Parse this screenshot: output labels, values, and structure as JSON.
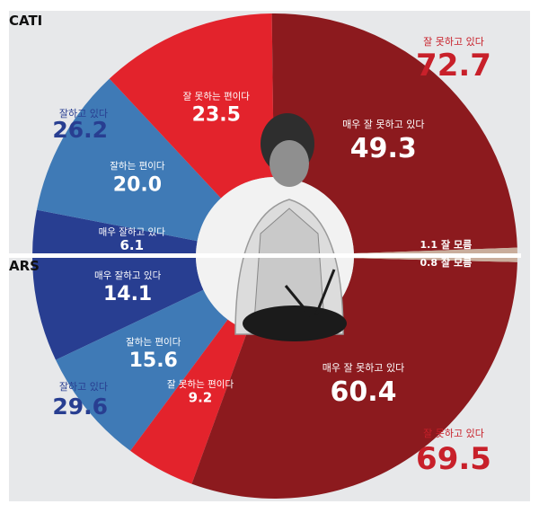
{
  "labels": {
    "top_group": "CATI",
    "bottom_group": "ARS"
  },
  "colors": {
    "very_bad": "#8c1a1e",
    "bad": "#e3232c",
    "good": "#3f7ab6",
    "very_good": "#283e91",
    "unknown": "#c9ad9c",
    "positive_text": "#283e91",
    "negative_text": "#c8202a",
    "background": "#e7e8ea"
  },
  "chart_data": [
    {
      "type": "pie",
      "group": "CATI",
      "slices": [
        {
          "label": "매우 잘 못하고 있다",
          "value": 49.3,
          "key": "very_bad"
        },
        {
          "label": "잘 못하는 편이다",
          "value": 23.5,
          "key": "bad"
        },
        {
          "label": "잘하는 편이다",
          "value": 20.0,
          "key": "good"
        },
        {
          "label": "매우 잘하고 있다",
          "value": 6.1,
          "key": "very_good"
        },
        {
          "label": "잘 모름",
          "value": 1.1,
          "key": "unknown"
        }
      ],
      "totals": [
        {
          "label": "잘 못하고 있다",
          "value": 72.7,
          "key": "negative"
        },
        {
          "label": "잘하고 있다",
          "value": 26.2,
          "key": "positive"
        }
      ]
    },
    {
      "type": "pie",
      "group": "ARS",
      "slices": [
        {
          "label": "매우 잘 못하고 있다",
          "value": 60.4,
          "key": "very_bad"
        },
        {
          "label": "잘 못하는 편이다",
          "value": 9.2,
          "key": "bad"
        },
        {
          "label": "잘하는 편이다",
          "value": 15.6,
          "key": "good"
        },
        {
          "label": "매우 잘하고 있다",
          "value": 14.1,
          "key": "very_good"
        },
        {
          "label": "잘 모름",
          "value": 0.8,
          "key": "unknown"
        }
      ],
      "totals": [
        {
          "label": "잘 못하고 있다",
          "value": 69.5,
          "key": "negative"
        },
        {
          "label": "잘하고 있다",
          "value": 29.6,
          "key": "positive"
        }
      ]
    }
  ]
}
